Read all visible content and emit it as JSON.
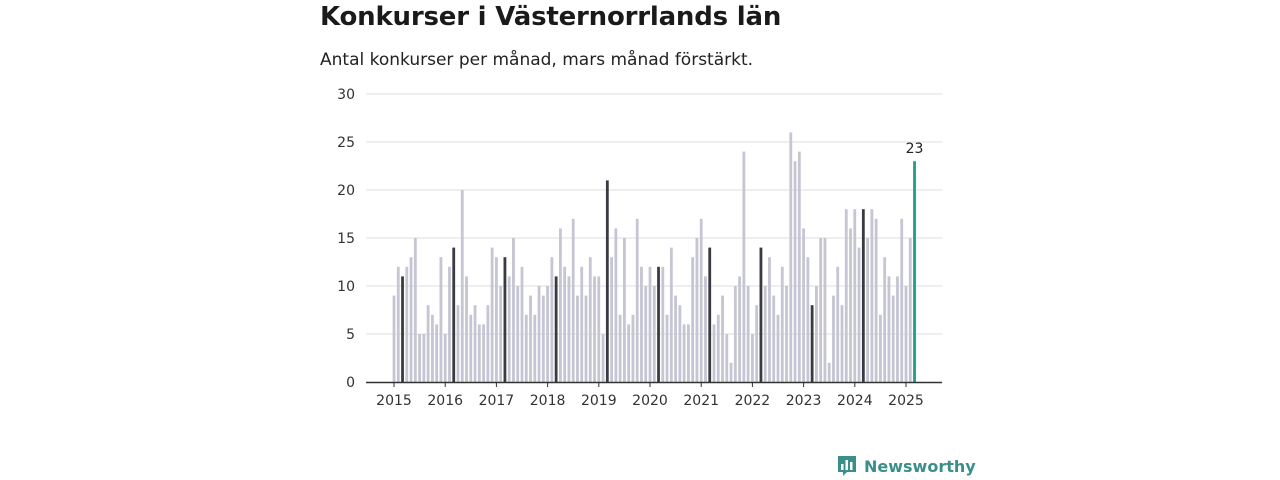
{
  "chart_data": {
    "type": "bar",
    "title": "Konkurser i Västernorrlands län",
    "subtitle": "Antal konkurser per månad, mars månad förstärkt.",
    "x_ticks": [
      "2015",
      "2016",
      "2017",
      "2018",
      "2019",
      "2020",
      "2021",
      "2022",
      "2023",
      "2024",
      "2025"
    ],
    "y_ticks": [
      0,
      5,
      10,
      15,
      20,
      25,
      30
    ],
    "ylim": [
      0,
      30
    ],
    "grid": "horizontal",
    "start_month": "2015-01",
    "end_month": "2025-03",
    "values": [
      9,
      12,
      11,
      12,
      13,
      15,
      5,
      5,
      8,
      7,
      6,
      13,
      5,
      12,
      14,
      8,
      20,
      11,
      7,
      8,
      6,
      6,
      8,
      14,
      13,
      10,
      13,
      11,
      15,
      10,
      12,
      7,
      9,
      7,
      10,
      9,
      10,
      13,
      11,
      16,
      12,
      11,
      17,
      9,
      12,
      9,
      13,
      11,
      11,
      5,
      21,
      13,
      16,
      7,
      15,
      6,
      7,
      17,
      12,
      10,
      12,
      10,
      12,
      12,
      7,
      14,
      9,
      8,
      6,
      6,
      13,
      15,
      17,
      11,
      14,
      6,
      7,
      9,
      5,
      2,
      10,
      11,
      24,
      10,
      5,
      8,
      14,
      10,
      13,
      9,
      7,
      12,
      10,
      26,
      23,
      24,
      16,
      13,
      8,
      10,
      15,
      15,
      2,
      9,
      12,
      8,
      18,
      16,
      18,
      14,
      18,
      15,
      18,
      17,
      7,
      13,
      11,
      9,
      11,
      17,
      10,
      15,
      23
    ],
    "highlight_month": "March",
    "last_value_label": "23",
    "colors": {
      "regular": "#c5c5d3",
      "march": "#3a3a42",
      "latest": "#1aa08a",
      "grid": "#dddddd",
      "axis": "#333333"
    }
  },
  "brand": {
    "name": "Newsworthy",
    "icon": "bar-chart-speech-bubble-icon",
    "color": "#3b8f8a"
  }
}
